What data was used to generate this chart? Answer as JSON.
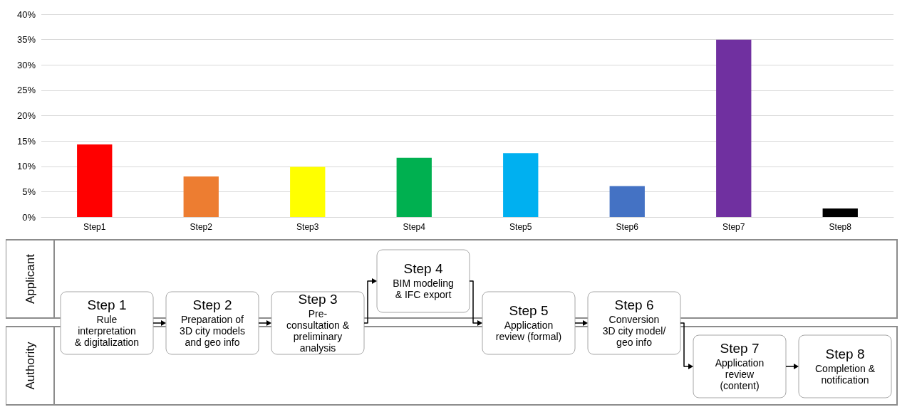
{
  "chart_data": [
    {
      "type": "bar",
      "categories": [
        "Step1",
        "Step2",
        "Step3",
        "Step4",
        "Step5",
        "Step6",
        "Step7",
        "Step8"
      ],
      "values": [
        14.3,
        8.0,
        9.9,
        11.7,
        12.6,
        6.1,
        35.0,
        1.7
      ],
      "colors": [
        "#ff0000",
        "#ed7d31",
        "#ffff00",
        "#00b050",
        "#00b0f0",
        "#4472c4",
        "#7030a0",
        "#000000"
      ],
      "ylim": [
        0,
        40
      ],
      "yticks": [
        {
          "value": 0,
          "label": "0%"
        },
        {
          "value": 5,
          "label": "5%"
        },
        {
          "value": 10,
          "label": "10%"
        },
        {
          "value": 15,
          "label": "15%"
        },
        {
          "value": 20,
          "label": "20%"
        },
        {
          "value": 25,
          "label": "25%"
        },
        {
          "value": 30,
          "label": "30%"
        },
        {
          "value": 35,
          "label": "35%"
        },
        {
          "value": 40,
          "label": "40%"
        }
      ],
      "grid": "y"
    },
    {
      "type": "other",
      "annotations": [
        "Applicant",
        "Authority",
        "Step 1\nRule\ninterpretation\n& digitalization",
        "Step 2\nPreparation of\n3D city models\nand geo info",
        "Step 3\nPre-\nconsultation &\npreliminary\nanalysis",
        "Step 4\nBIM modeling\n& IFC export",
        "Step 5\nApplication\nreview (formal)",
        "Step 6\nConversion\n3D city model/\ngeo info",
        "Step 7\nApplication\nreview\n(content)",
        "Step 8\nCompletion &\nnotification"
      ]
    }
  ]
}
